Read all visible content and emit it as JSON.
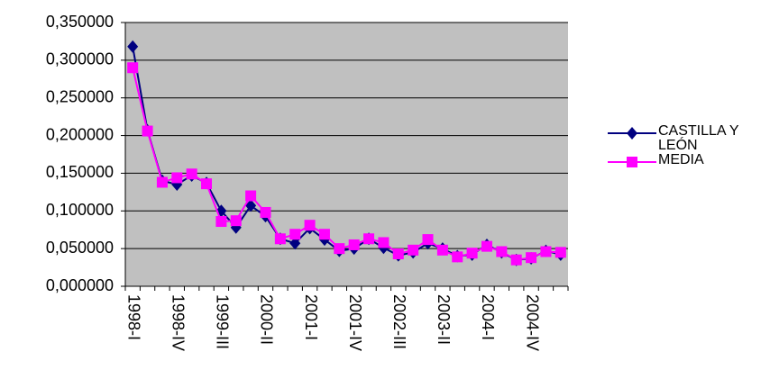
{
  "chart_data": {
    "type": "line",
    "categories": [
      "1998-I",
      null,
      null,
      "1998-IV",
      null,
      null,
      "1999-III",
      null,
      null,
      "2000-II",
      null,
      null,
      "2001-I",
      null,
      null,
      "2001-IV",
      null,
      null,
      "2002-III",
      null,
      null,
      "2003-II",
      null,
      null,
      "2004-I",
      null,
      null,
      "2004-IV",
      null,
      null
    ],
    "series": [
      {
        "name": "CASTILLA Y LEÓN",
        "color": "#000080",
        "marker": "diamond",
        "values": [
          0.318,
          0.207,
          0.14,
          0.135,
          0.147,
          0.137,
          0.1,
          0.078,
          0.107,
          0.093,
          0.063,
          0.057,
          0.077,
          0.062,
          0.047,
          0.05,
          0.063,
          0.051,
          0.041,
          0.045,
          0.057,
          0.05,
          0.04,
          0.042,
          0.055,
          0.045,
          0.035,
          0.037,
          0.047,
          0.042
        ]
      },
      {
        "name": "MEDIA",
        "color": "#ff00ff",
        "marker": "square",
        "values": [
          0.29,
          0.206,
          0.138,
          0.144,
          0.149,
          0.136,
          0.086,
          0.087,
          0.12,
          0.098,
          0.063,
          0.069,
          0.081,
          0.069,
          0.05,
          0.055,
          0.063,
          0.058,
          0.043,
          0.048,
          0.062,
          0.048,
          0.039,
          0.044,
          0.053,
          0.046,
          0.035,
          0.038,
          0.046,
          0.045
        ]
      }
    ],
    "ylim": [
      0,
      0.35
    ],
    "yticks": [
      {
        "value": 0,
        "label": "0,000000"
      },
      {
        "value": 0.05,
        "label": "0,050000"
      },
      {
        "value": 0.1,
        "label": "0,100000"
      },
      {
        "value": 0.15,
        "label": "0,150000"
      },
      {
        "value": 0.2,
        "label": "0,200000"
      },
      {
        "value": 0.25,
        "label": "0,250000"
      },
      {
        "value": 0.3,
        "label": "0,300000"
      },
      {
        "value": 0.35,
        "label": "0,350000"
      }
    ],
    "grid": true,
    "plot_background": "#c0c0c0",
    "legend": "right"
  }
}
